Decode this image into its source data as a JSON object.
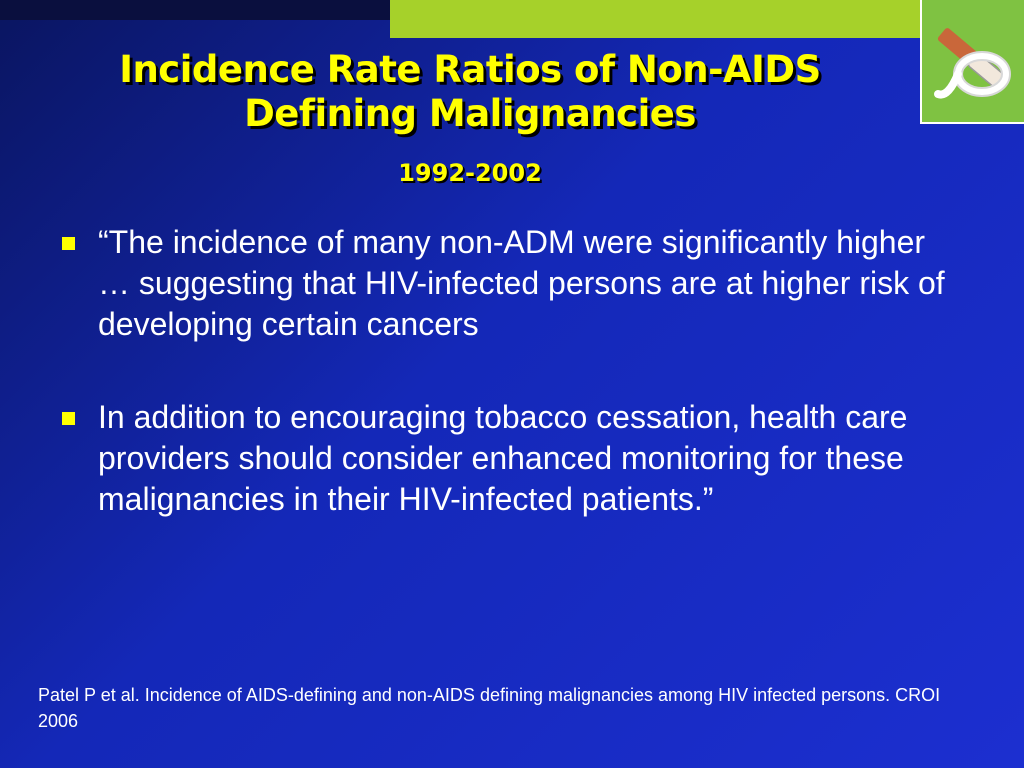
{
  "slide": {
    "title": "Incidence Rate Ratios of Non-AIDS Defining Malignancies",
    "subtitle": "1992-2002",
    "bullets": [
      {
        "text": "“The incidence of many non-ADM were significantly higher … suggesting that HIV-infected persons are at higher risk of developing certain cancers"
      },
      {
        "text": "In addition to encouraging tobacco cessation, health care providers should consider enhanced monitoring for these malignancies in their HIV-infected patients.”"
      }
    ],
    "citation": "Patel P et al. Incidence of AIDS-defining and non-AIDS defining malignancies among HIV infected persons. CROI 2006"
  },
  "logo": {
    "icon": "no-smoking-cigarette-icon"
  },
  "colors": {
    "background": "#1428b8",
    "title": "#ffff00",
    "bullet_marker": "#ffff00",
    "accent_bar": "#a6d12a",
    "logo_bg": "#7fc242",
    "body_text": "#ffffff"
  }
}
